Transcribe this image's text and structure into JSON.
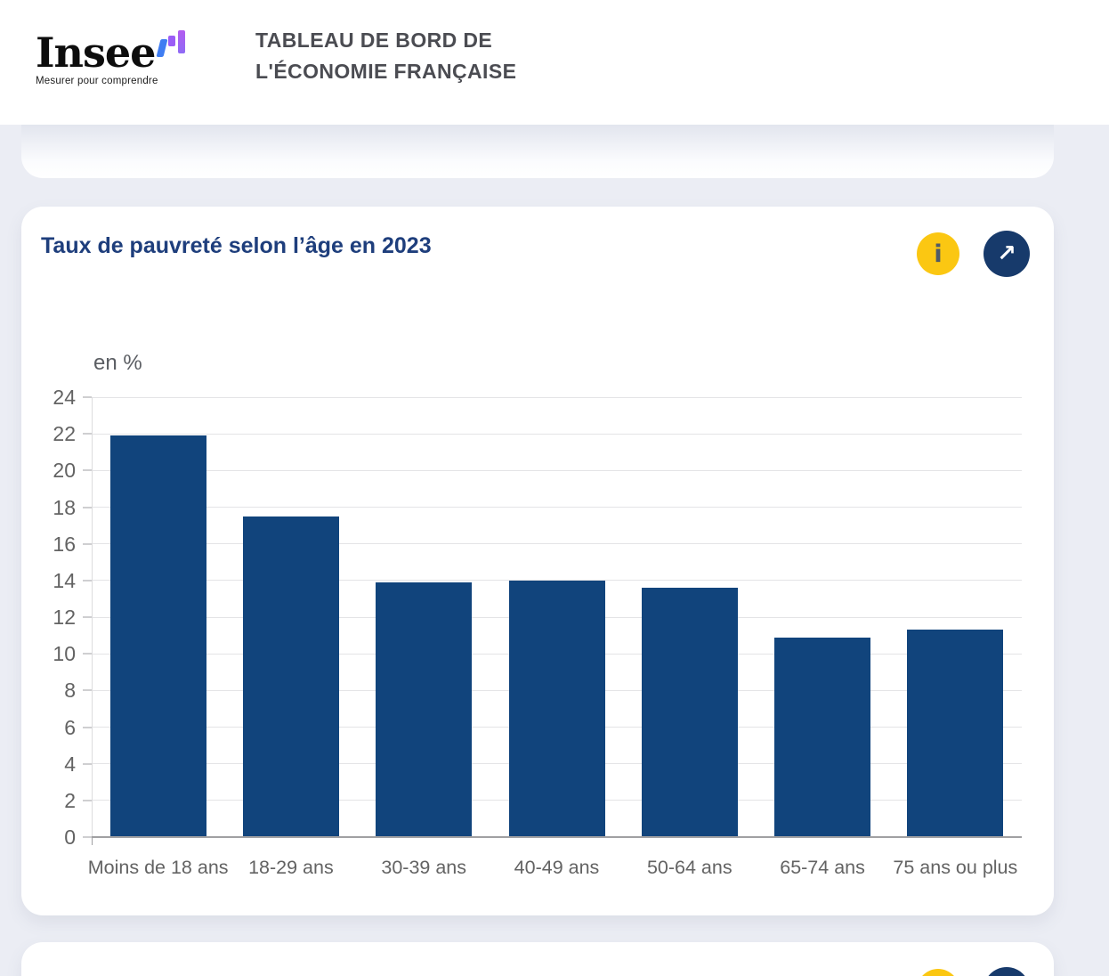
{
  "header": {
    "logo": {
      "brand": "Insee",
      "tagline": "Mesurer pour comprendre"
    },
    "title_line1": "TABLEAU DE BORD DE",
    "title_line2": "L'ÉCONOMIE FRANÇAISE"
  },
  "card": {
    "title": "Taux de pauvreté selon l’âge en 2023",
    "info_icon_glyph": "i",
    "external_link_glyph": "↗"
  },
  "chart_data": {
    "type": "bar",
    "title": "Taux de pauvreté selon l’âge en 2023",
    "unit_label": "en %",
    "categories": [
      "Moins de 18 ans",
      "18-29 ans",
      "30-39 ans",
      "40-49 ans",
      "50-64 ans",
      "65-74 ans",
      "75 ans ou plus"
    ],
    "values": [
      21.9,
      17.5,
      13.9,
      14.0,
      13.6,
      10.9,
      11.3
    ],
    "xlabel": "",
    "ylabel": "en %",
    "ylim": [
      0,
      24
    ],
    "ytick_step": 2,
    "grid": true,
    "legend": "none",
    "bar_color": "#11447c"
  },
  "colors": {
    "page_background": "#ebedf4",
    "card_background": "#ffffff",
    "title_navy": "#1e3e7c",
    "bar_navy": "#11447c",
    "info_button_yellow": "#fbc712",
    "link_button_navy": "#173a6b",
    "axis_text_gray": "#636363"
  }
}
